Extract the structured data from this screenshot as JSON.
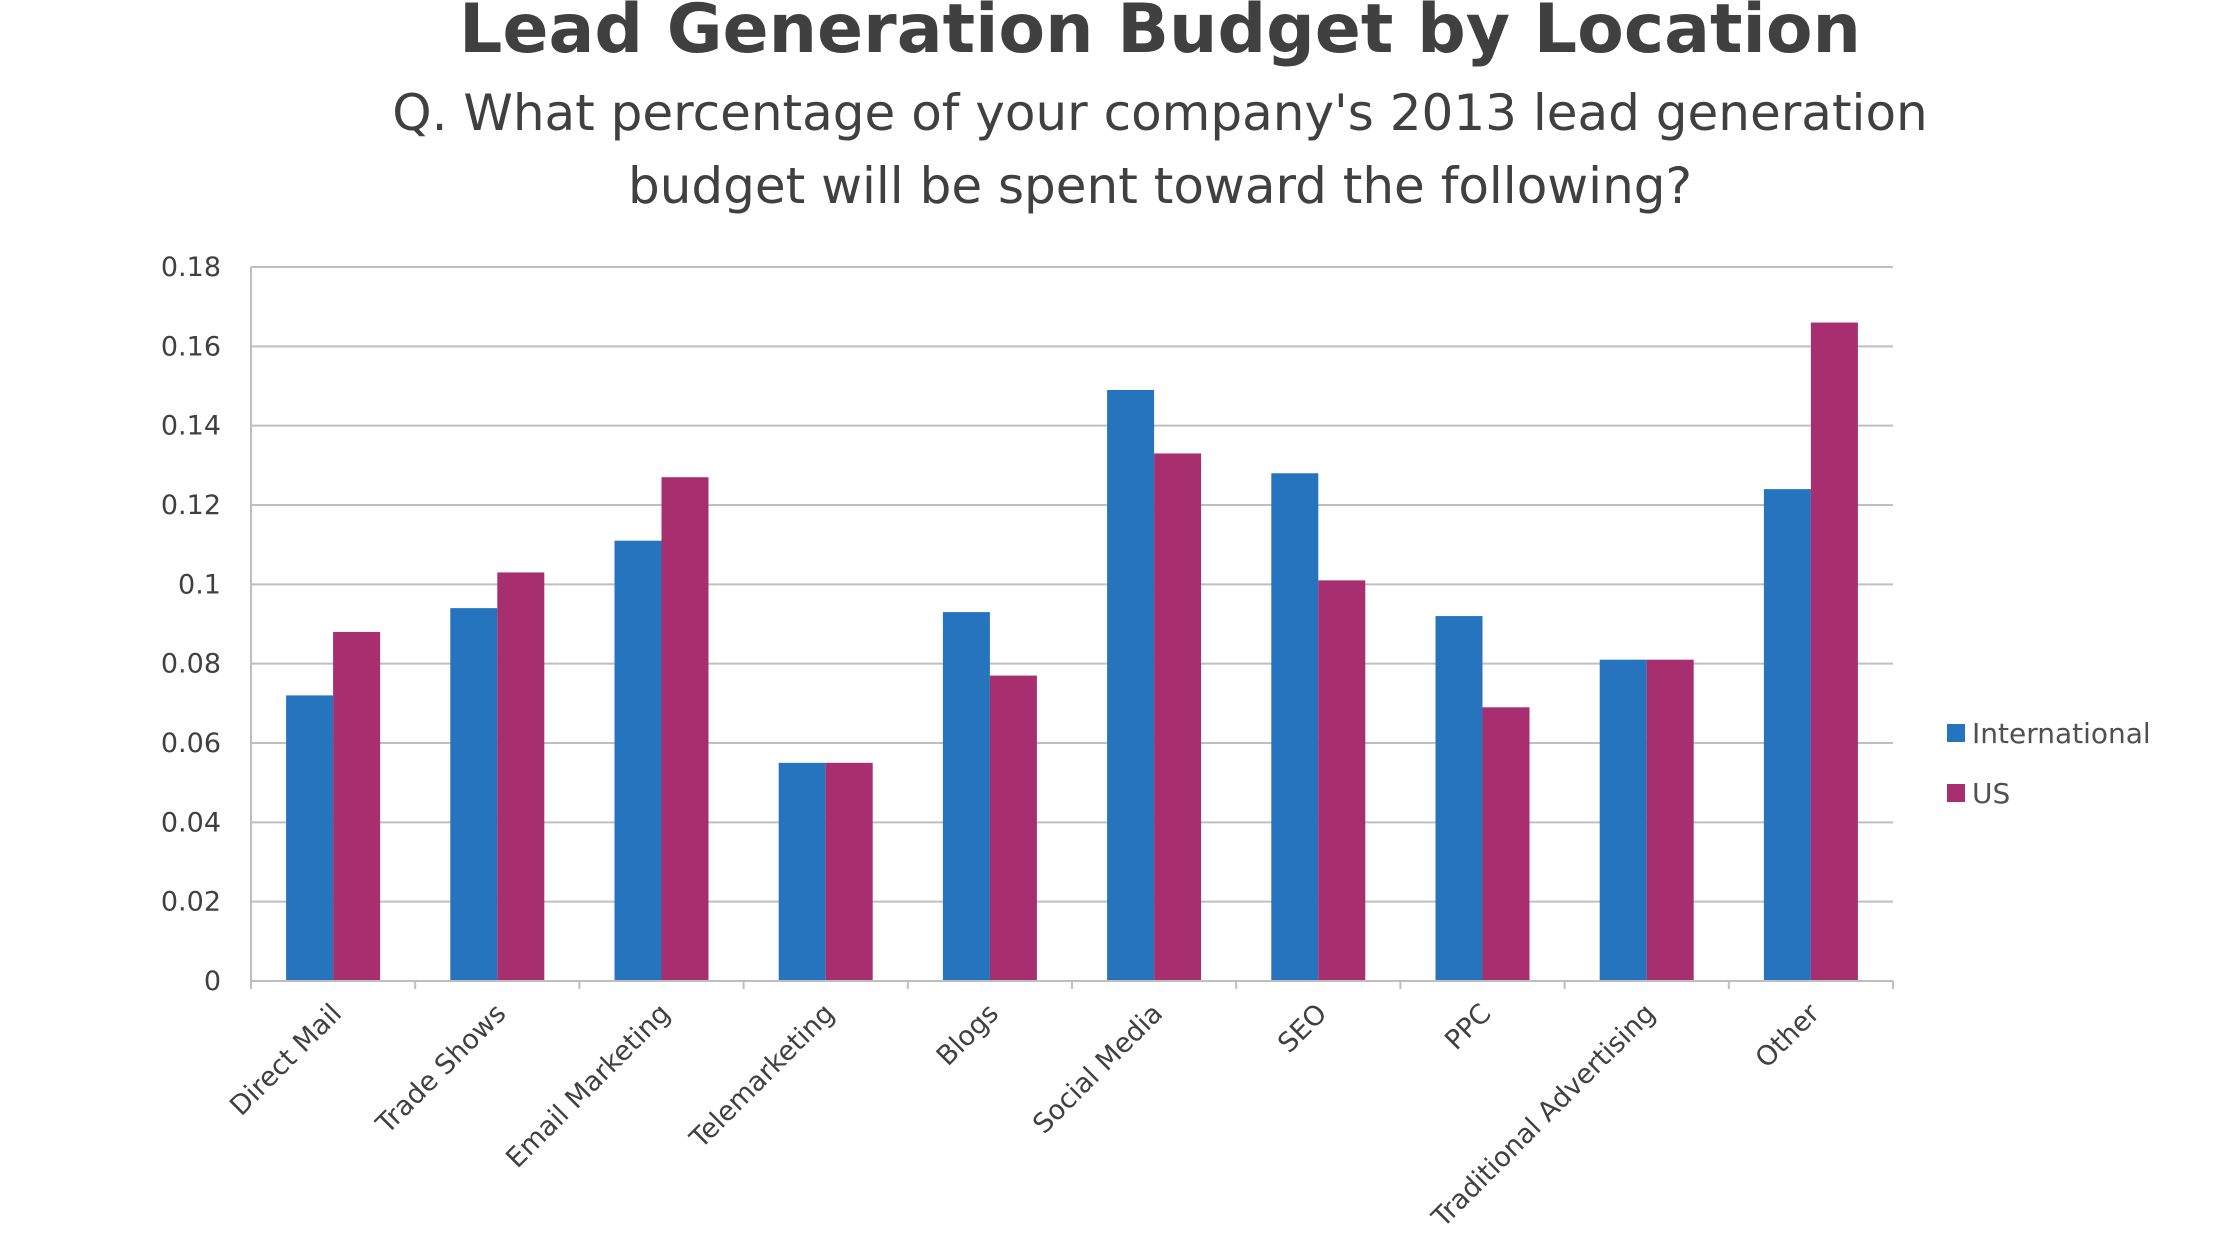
{
  "chart_data": {
    "type": "bar",
    "title": "Lead Generation Budget by Location",
    "subtitle": [
      "Q. What percentage of your company's 2013 lead generation",
      "budget will be spent toward the following?"
    ],
    "xlabel": "",
    "ylabel": "",
    "ylim": [
      0,
      0.18
    ],
    "yticks": [
      "0",
      "0.02",
      "0.04",
      "0.06",
      "0.08",
      "0.1",
      "0.12",
      "0.14",
      "0.16",
      "0.18"
    ],
    "grid": true,
    "legend_position": "right",
    "categories": [
      "Direct Mail",
      "Trade Shows",
      "Email Marketing",
      "Telemarketing",
      "Blogs",
      "Social Media",
      "SEO",
      "PPC",
      "Traditional Advertising",
      "Other"
    ],
    "series": [
      {
        "name": "International",
        "color": "#2574bd",
        "values": [
          0.072,
          0.094,
          0.111,
          0.055,
          0.093,
          0.149,
          0.128,
          0.092,
          0.081,
          0.124
        ]
      },
      {
        "name": "US",
        "color": "#a72e6f",
        "values": [
          0.088,
          0.103,
          0.127,
          0.055,
          0.077,
          0.133,
          0.101,
          0.069,
          0.081,
          0.166
        ]
      }
    ]
  }
}
